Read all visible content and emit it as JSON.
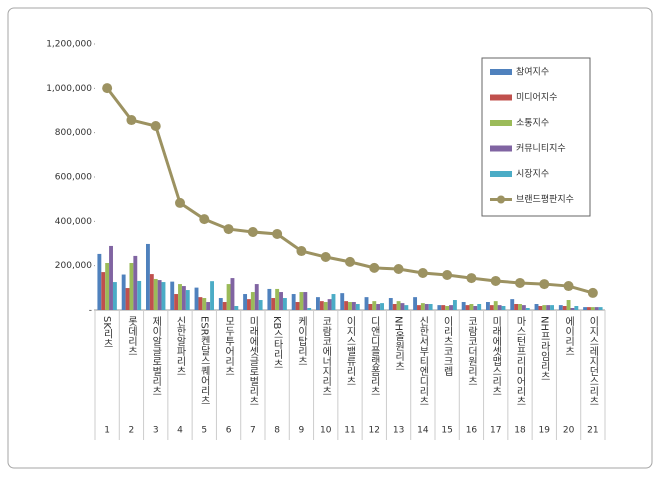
{
  "chart_data": {
    "type": "bar",
    "categories": [
      "SK리츠",
      "롯데리츠",
      "제이알글로벌리츠",
      "신한알파리츠",
      "ESR켄달스퀘어리츠",
      "모두투어리츠",
      "미래에셋글로벌리츠",
      "KB스타리츠",
      "케이탑리츠",
      "코람코에너지리츠",
      "이지스밸류리츠",
      "디앤디플랫폼리츠",
      "NH올원리츠",
      "신한서부티엔디리츠",
      "이리츠코크렙",
      "코람코더원리츠",
      "미래에셋맵스리츠",
      "마스턴프리미어리츠",
      "NH프라임리츠",
      "에이리츠",
      "이지스레지던스리츠"
    ],
    "category_numbers": [
      "1",
      "2",
      "3",
      "4",
      "5",
      "6",
      "7",
      "8",
      "9",
      "10",
      "11",
      "12",
      "13",
      "14",
      "15",
      "16",
      "17",
      "18",
      "19",
      "20",
      "21"
    ],
    "series": [
      {
        "name": "참여지수",
        "color": "#4f81bd",
        "values": [
          253000,
          160000,
          298000,
          128000,
          101000,
          54000,
          72000,
          95000,
          72000,
          58000,
          76000,
          58000,
          54000,
          58000,
          22000,
          36000,
          36000,
          49000,
          27000,
          22000,
          13000
        ]
      },
      {
        "name": "미디어지수",
        "color": "#c0504d",
        "values": [
          171000,
          99000,
          162000,
          72000,
          58000,
          36000,
          49000,
          54000,
          36000,
          40000,
          40000,
          27000,
          27000,
          22000,
          22000,
          22000,
          22000,
          27000,
          18000,
          18000,
          13000
        ]
      },
      {
        "name": "소통지수",
        "color": "#9bbb59",
        "values": [
          212000,
          212000,
          140000,
          117000,
          54000,
          117000,
          81000,
          95000,
          81000,
          36000,
          36000,
          40000,
          40000,
          31000,
          18000,
          27000,
          40000,
          27000,
          22000,
          45000,
          13000
        ]
      },
      {
        "name": "커뮤니티지수",
        "color": "#8064a2",
        "values": [
          289000,
          244000,
          135000,
          108000,
          36000,
          144000,
          117000,
          81000,
          81000,
          49000,
          36000,
          27000,
          31000,
          27000,
          22000,
          18000,
          22000,
          22000,
          22000,
          9000,
          13000
        ]
      },
      {
        "name": "시장지수",
        "color": "#4bacc6",
        "values": [
          126000,
          131000,
          126000,
          90000,
          130000,
          18000,
          45000,
          54000,
          9000,
          72000,
          27000,
          31000,
          22000,
          27000,
          45000,
          27000,
          18000,
          9000,
          22000,
          18000,
          13000
        ]
      },
      {
        "name": "브랜드평판지수",
        "color": "#9c9261",
        "type": "line",
        "values": [
          1001000,
          857000,
          830000,
          483000,
          410000,
          365000,
          352000,
          343000,
          266000,
          239000,
          217000,
          190000,
          185000,
          167000,
          158000,
          144000,
          131000,
          122000,
          117000,
          108000,
          77000
        ]
      }
    ],
    "ylim": [
      0,
      1200000
    ],
    "yticks": [
      {
        "value": 0,
        "label": "-"
      },
      {
        "value": 200000,
        "label": "200,000"
      },
      {
        "value": 400000,
        "label": "400,000"
      },
      {
        "value": 600000,
        "label": "600,000"
      },
      {
        "value": 800000,
        "label": "800,000"
      },
      {
        "value": 1000000,
        "label": "1,000,000"
      },
      {
        "value": 1200000,
        "label": "1,200,000"
      }
    ]
  }
}
